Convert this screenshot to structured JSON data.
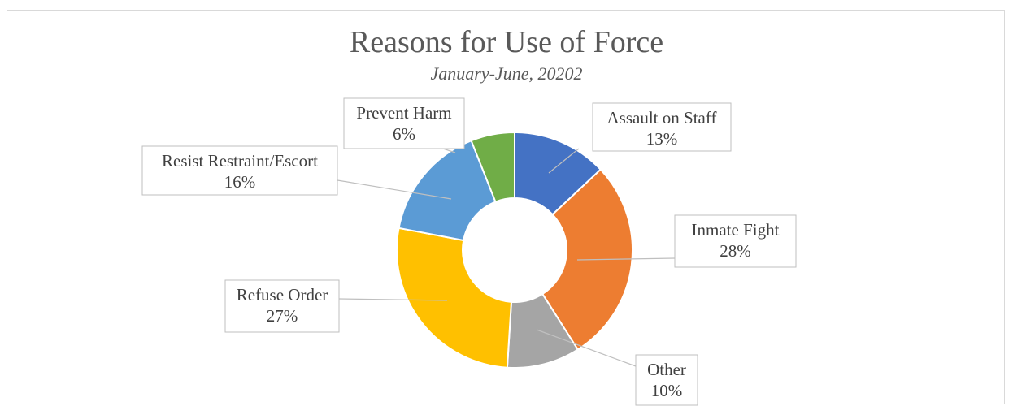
{
  "chart_data": {
    "type": "pie",
    "donut": true,
    "title": "Reasons for Use of Force",
    "subtitle": "January-June, 20202",
    "slices": [
      {
        "label": "Assault on Staff",
        "pct_label": "13%",
        "value": 13,
        "color": "#4472C4"
      },
      {
        "label": "Inmate Fight",
        "pct_label": "28%",
        "value": 28,
        "color": "#ED7D31"
      },
      {
        "label": "Other",
        "pct_label": "10%",
        "value": 10,
        "color": "#A5A5A5"
      },
      {
        "label": "Refuse Order",
        "pct_label": "27%",
        "value": 27,
        "color": "#FFC000"
      },
      {
        "label": "Resist Restraint/Escort",
        "pct_label": "16%",
        "value": 16,
        "color": "#5B9BD5"
      },
      {
        "label": "Prevent Harm",
        "pct_label": "6%",
        "value": 6,
        "color": "#70AD47"
      }
    ],
    "legend": "none",
    "data_labels": "callouts"
  }
}
